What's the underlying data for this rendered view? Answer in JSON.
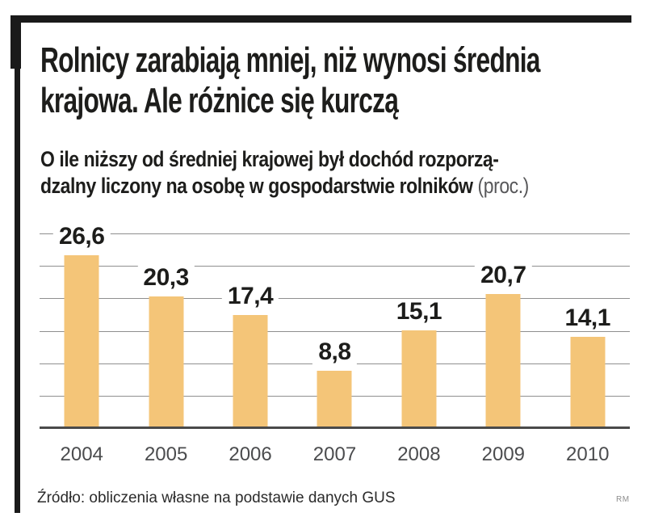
{
  "header": {
    "title_lines": [
      "Rolnicy zarabiają mniej, niż wynosi średnia",
      "krajowa. Ale różnice się kurczą"
    ],
    "subtitle_lines": [
      "O ile niższy od średniej krajowej był dochód rozporzą-",
      "dzalny liczony na osobę w gospodarstwie rolników"
    ],
    "subtitle_unit": "(proc.)"
  },
  "chart_data": {
    "type": "bar",
    "title": "O ile niższy od średniej krajowej był dochód rozporządzalny liczony na osobę w gospodarstwie rolników (proc.)",
    "categories": [
      "2004",
      "2005",
      "2006",
      "2007",
      "2008",
      "2009",
      "2010"
    ],
    "values": [
      26.6,
      20.3,
      17.4,
      8.8,
      15.1,
      20.7,
      14.1
    ],
    "value_labels": [
      "26,6",
      "20,3",
      "17,4",
      "8,8",
      "15,1",
      "20,7",
      "14,1"
    ],
    "xlabel": "",
    "ylabel": "",
    "unit": "proc.",
    "ylim": [
      0,
      30
    ],
    "gridline_step": 5,
    "grid": true,
    "legend": false,
    "bar_color": "#F4C578"
  },
  "footer": {
    "source": "Źródło: obliczenia własne na podstawie danych GUS",
    "credit": "RM"
  },
  "colors": {
    "ink": "#1d1d1b",
    "bar": "#F4C578",
    "gridline": "#8f8f8f",
    "baseline": "#4a4a4a",
    "axis_text": "#4b4c4e",
    "unit_text": "#58585a"
  }
}
